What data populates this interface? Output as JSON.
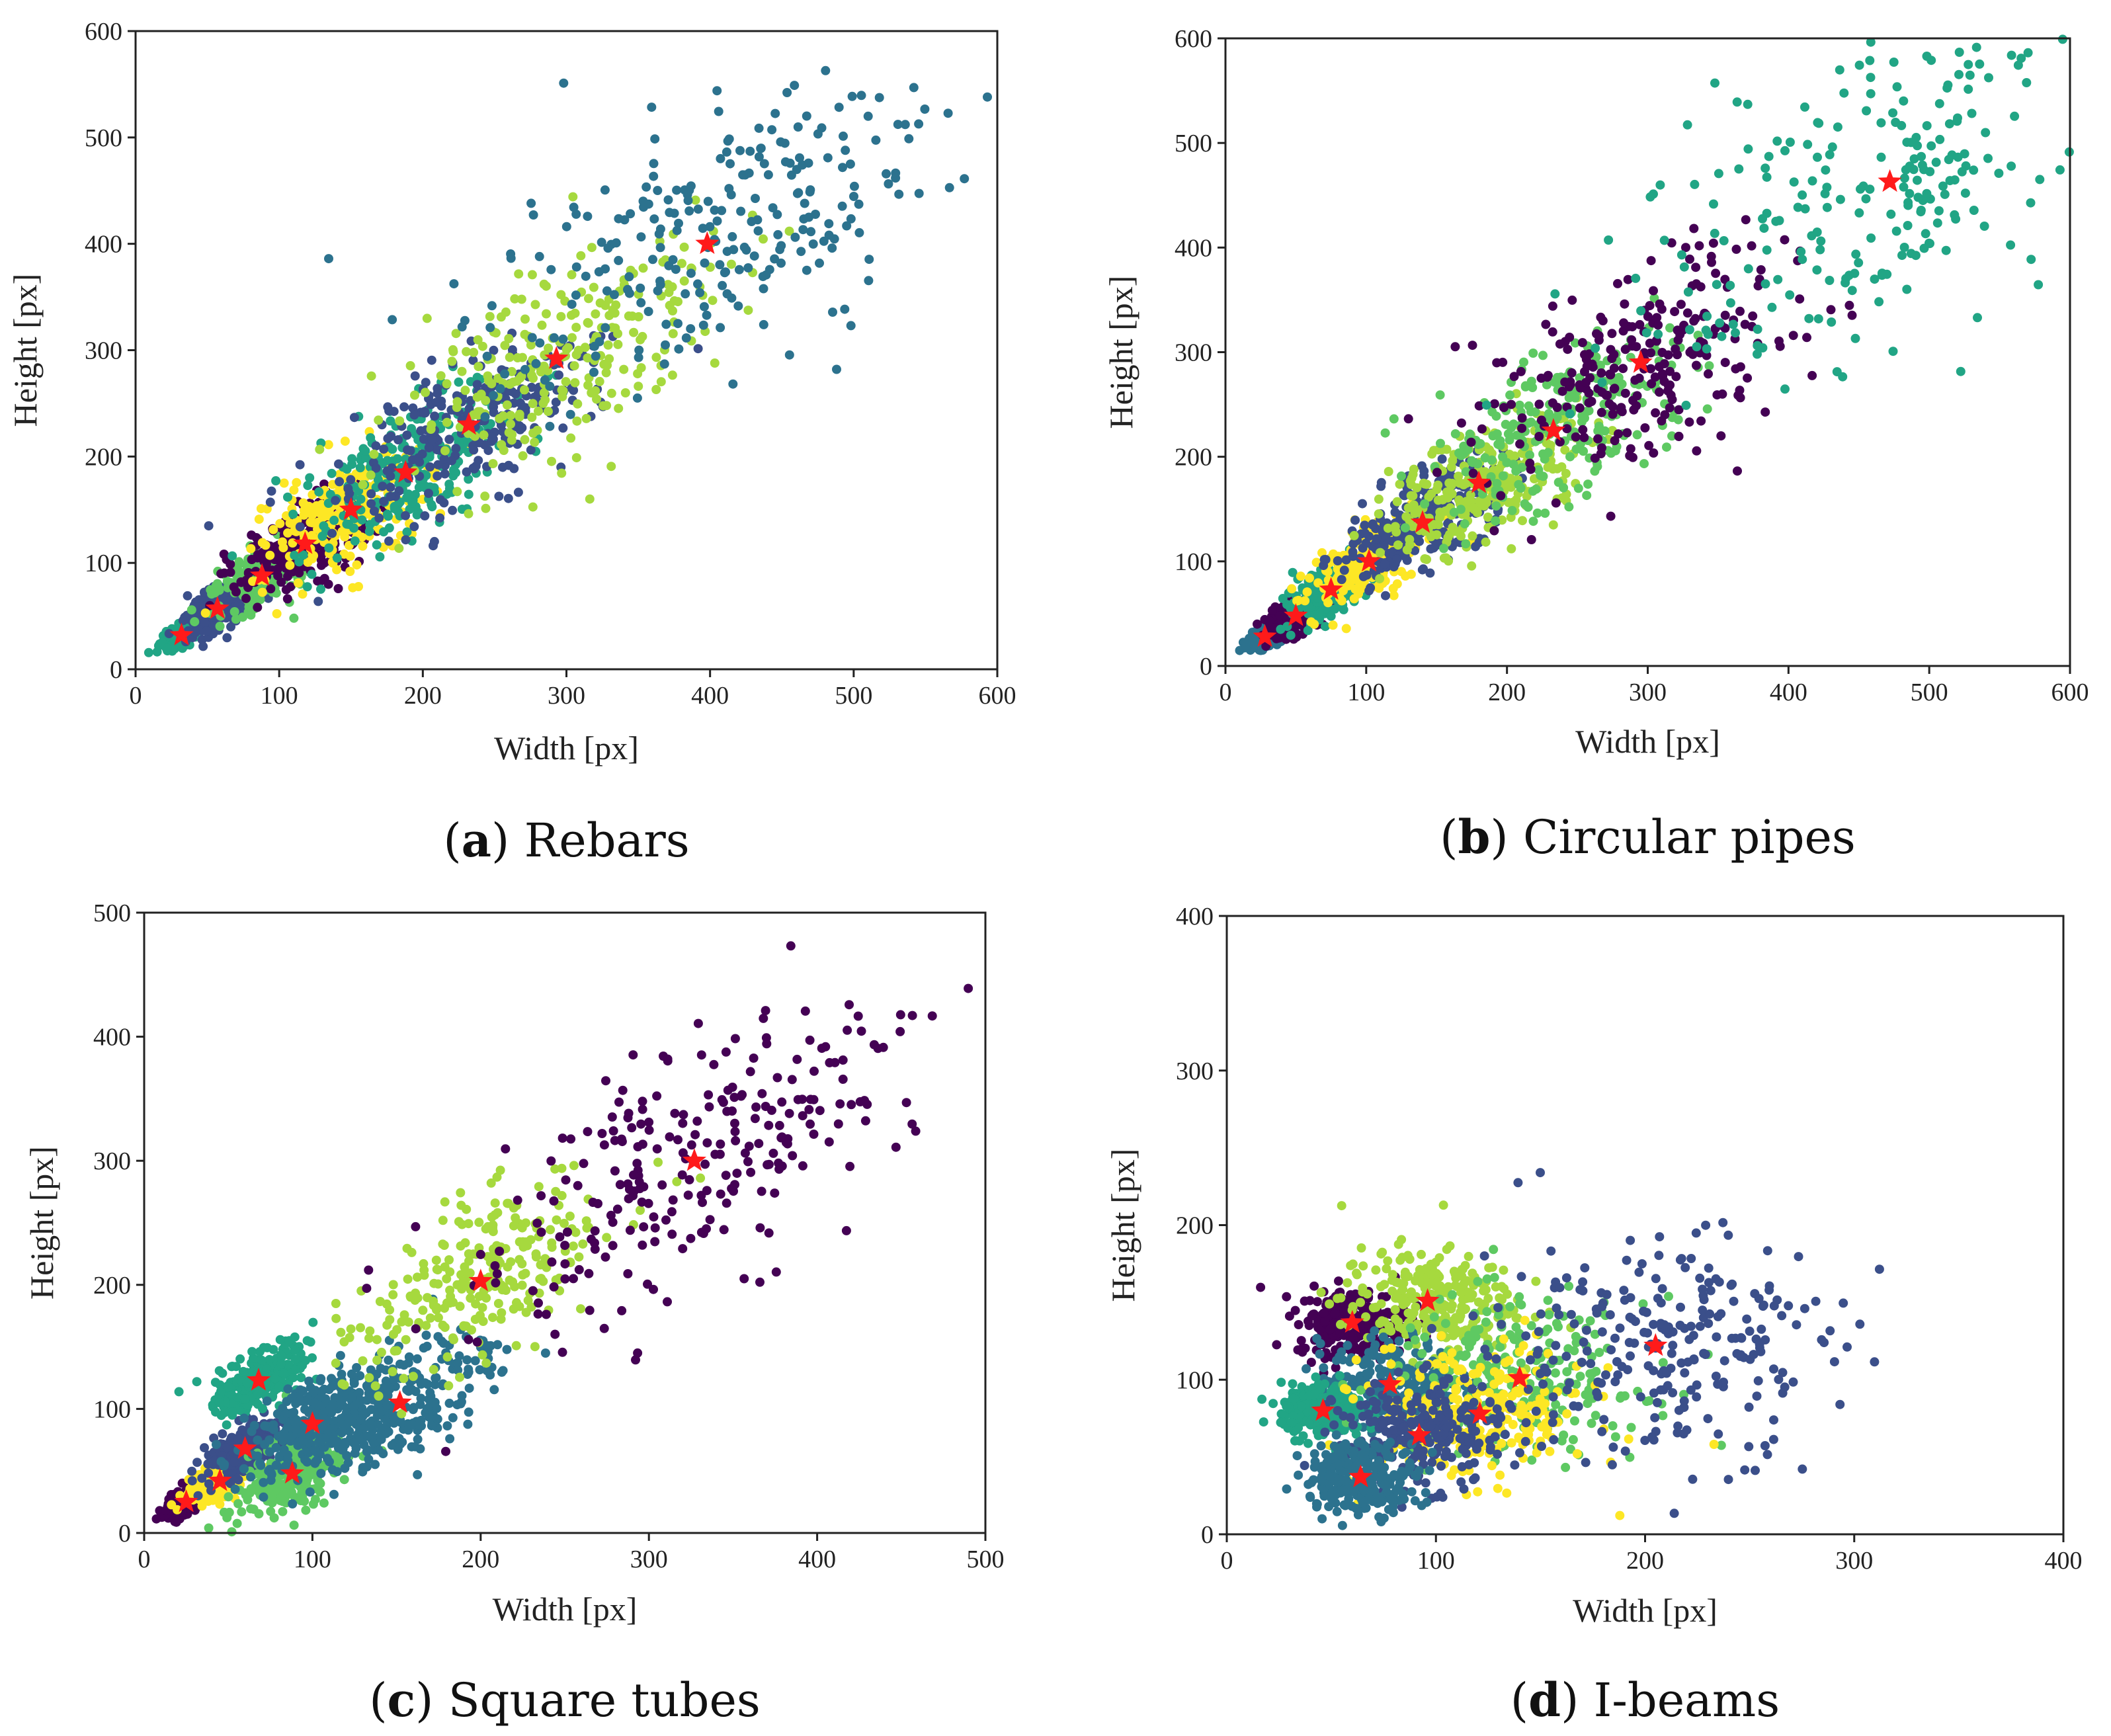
{
  "figure": {
    "panels": [
      {
        "caption_letter": "a",
        "caption_text": "Rebars",
        "xlabel": "Width [px]",
        "ylabel": "Height [px]"
      },
      {
        "caption_letter": "b",
        "caption_text": "Circular pipes",
        "xlabel": "Width [px]",
        "ylabel": "Height [px]"
      },
      {
        "caption_letter": "c",
        "caption_text": "Square tubes",
        "xlabel": "Width [px]",
        "ylabel": "Height [px]"
      },
      {
        "caption_letter": "d",
        "caption_text": "I-beams",
        "xlabel": "Width [px]",
        "ylabel": "Height [px]"
      }
    ]
  },
  "colors": {
    "centroid_marker": "#ff1a1a",
    "cluster_dark_purple": "#440154",
    "cluster_indigo": "#3b4f8a",
    "cluster_steel_blue": "#2c728e",
    "cluster_teal_green": "#21a585",
    "cluster_green": "#5ec962",
    "cluster_lime": "#a6d93e",
    "cluster_yellow": "#fde725"
  },
  "chart_data": [
    {
      "type": "scatter",
      "title": "Rebars",
      "xlabel": "Width [px]",
      "ylabel": "Height [px]",
      "xlim": [
        0,
        600
      ],
      "ylim": [
        0,
        600
      ],
      "xticks": [
        "0",
        "100",
        "200",
        "300",
        "400",
        "500",
        "600"
      ],
      "yticks": [
        "0",
        "100",
        "200",
        "300",
        "400",
        "500",
        "600"
      ],
      "centroids": [
        [
          32,
          32
        ],
        [
          57,
          57
        ],
        [
          88,
          88
        ],
        [
          118,
          118
        ],
        [
          150,
          150
        ],
        [
          188,
          185
        ],
        [
          232,
          230
        ],
        [
          293,
          292
        ],
        [
          398,
          400
        ]
      ],
      "cluster_colors": [
        "#21a585",
        "#3b4f8a",
        "#5ec962",
        "#440154",
        "#fde725",
        "#21a585",
        "#3b4f8a",
        "#a6d93e",
        "#2c728e"
      ]
    },
    {
      "type": "scatter",
      "title": "Circular pipes",
      "xlabel": "Width [px]",
      "ylabel": "Height [px]",
      "xlim": [
        0,
        600
      ],
      "ylim": [
        0,
        600
      ],
      "xticks": [
        "0",
        "100",
        "200",
        "300",
        "400",
        "500",
        "600"
      ],
      "yticks": [
        "0",
        "100",
        "200",
        "300",
        "400",
        "500",
        "600"
      ],
      "centroids": [
        [
          28,
          28
        ],
        [
          50,
          48
        ],
        [
          75,
          73
        ],
        [
          102,
          100
        ],
        [
          140,
          137
        ],
        [
          180,
          175
        ],
        [
          233,
          225
        ],
        [
          295,
          290
        ],
        [
          472,
          463
        ]
      ],
      "cluster_colors": [
        "#2c728e",
        "#440154",
        "#21a585",
        "#fde725",
        "#3b4f8a",
        "#a6d93e",
        "#5ec962",
        "#440154",
        "#21a585"
      ]
    },
    {
      "type": "scatter",
      "title": "Square tubes",
      "xlabel": "Width [px]",
      "ylabel": "Height [px]",
      "xlim": [
        0,
        500
      ],
      "ylim": [
        0,
        500
      ],
      "xticks": [
        "0",
        "100",
        "200",
        "300",
        "400",
        "500"
      ],
      "yticks": [
        "0",
        "100",
        "200",
        "300",
        "400",
        "500"
      ],
      "centroids": [
        [
          25,
          25
        ],
        [
          45,
          42
        ],
        [
          60,
          68
        ],
        [
          68,
          123
        ],
        [
          88,
          48
        ],
        [
          100,
          88
        ],
        [
          152,
          105
        ],
        [
          200,
          203
        ],
        [
          327,
          300
        ]
      ],
      "cluster_colors": [
        "#440154",
        "#fde725",
        "#3b4f8a",
        "#21a585",
        "#5ec962",
        "#2c728e",
        "#2c728e",
        "#a6d93e",
        "#440154"
      ]
    },
    {
      "type": "scatter",
      "title": "I-beams",
      "xlabel": "Width [px]",
      "ylabel": "Height [px]",
      "xlim": [
        0,
        400
      ],
      "ylim": [
        0,
        400
      ],
      "xticks": [
        "0",
        "100",
        "200",
        "300",
        "400"
      ],
      "yticks": [
        "0",
        "100",
        "200",
        "300",
        "400"
      ],
      "centroids": [
        [
          60,
          137
        ],
        [
          96,
          151
        ],
        [
          78,
          97
        ],
        [
          46,
          80
        ],
        [
          140,
          101
        ],
        [
          121,
          78
        ],
        [
          92,
          64
        ],
        [
          64,
          37
        ],
        [
          205,
          122
        ]
      ],
      "cluster_colors": [
        "#440154",
        "#a6d93e",
        "#2c728e",
        "#21a585",
        "#5ec962",
        "#fde725",
        "#3b4f8a",
        "#2c728e",
        "#3b4f8a"
      ]
    }
  ]
}
